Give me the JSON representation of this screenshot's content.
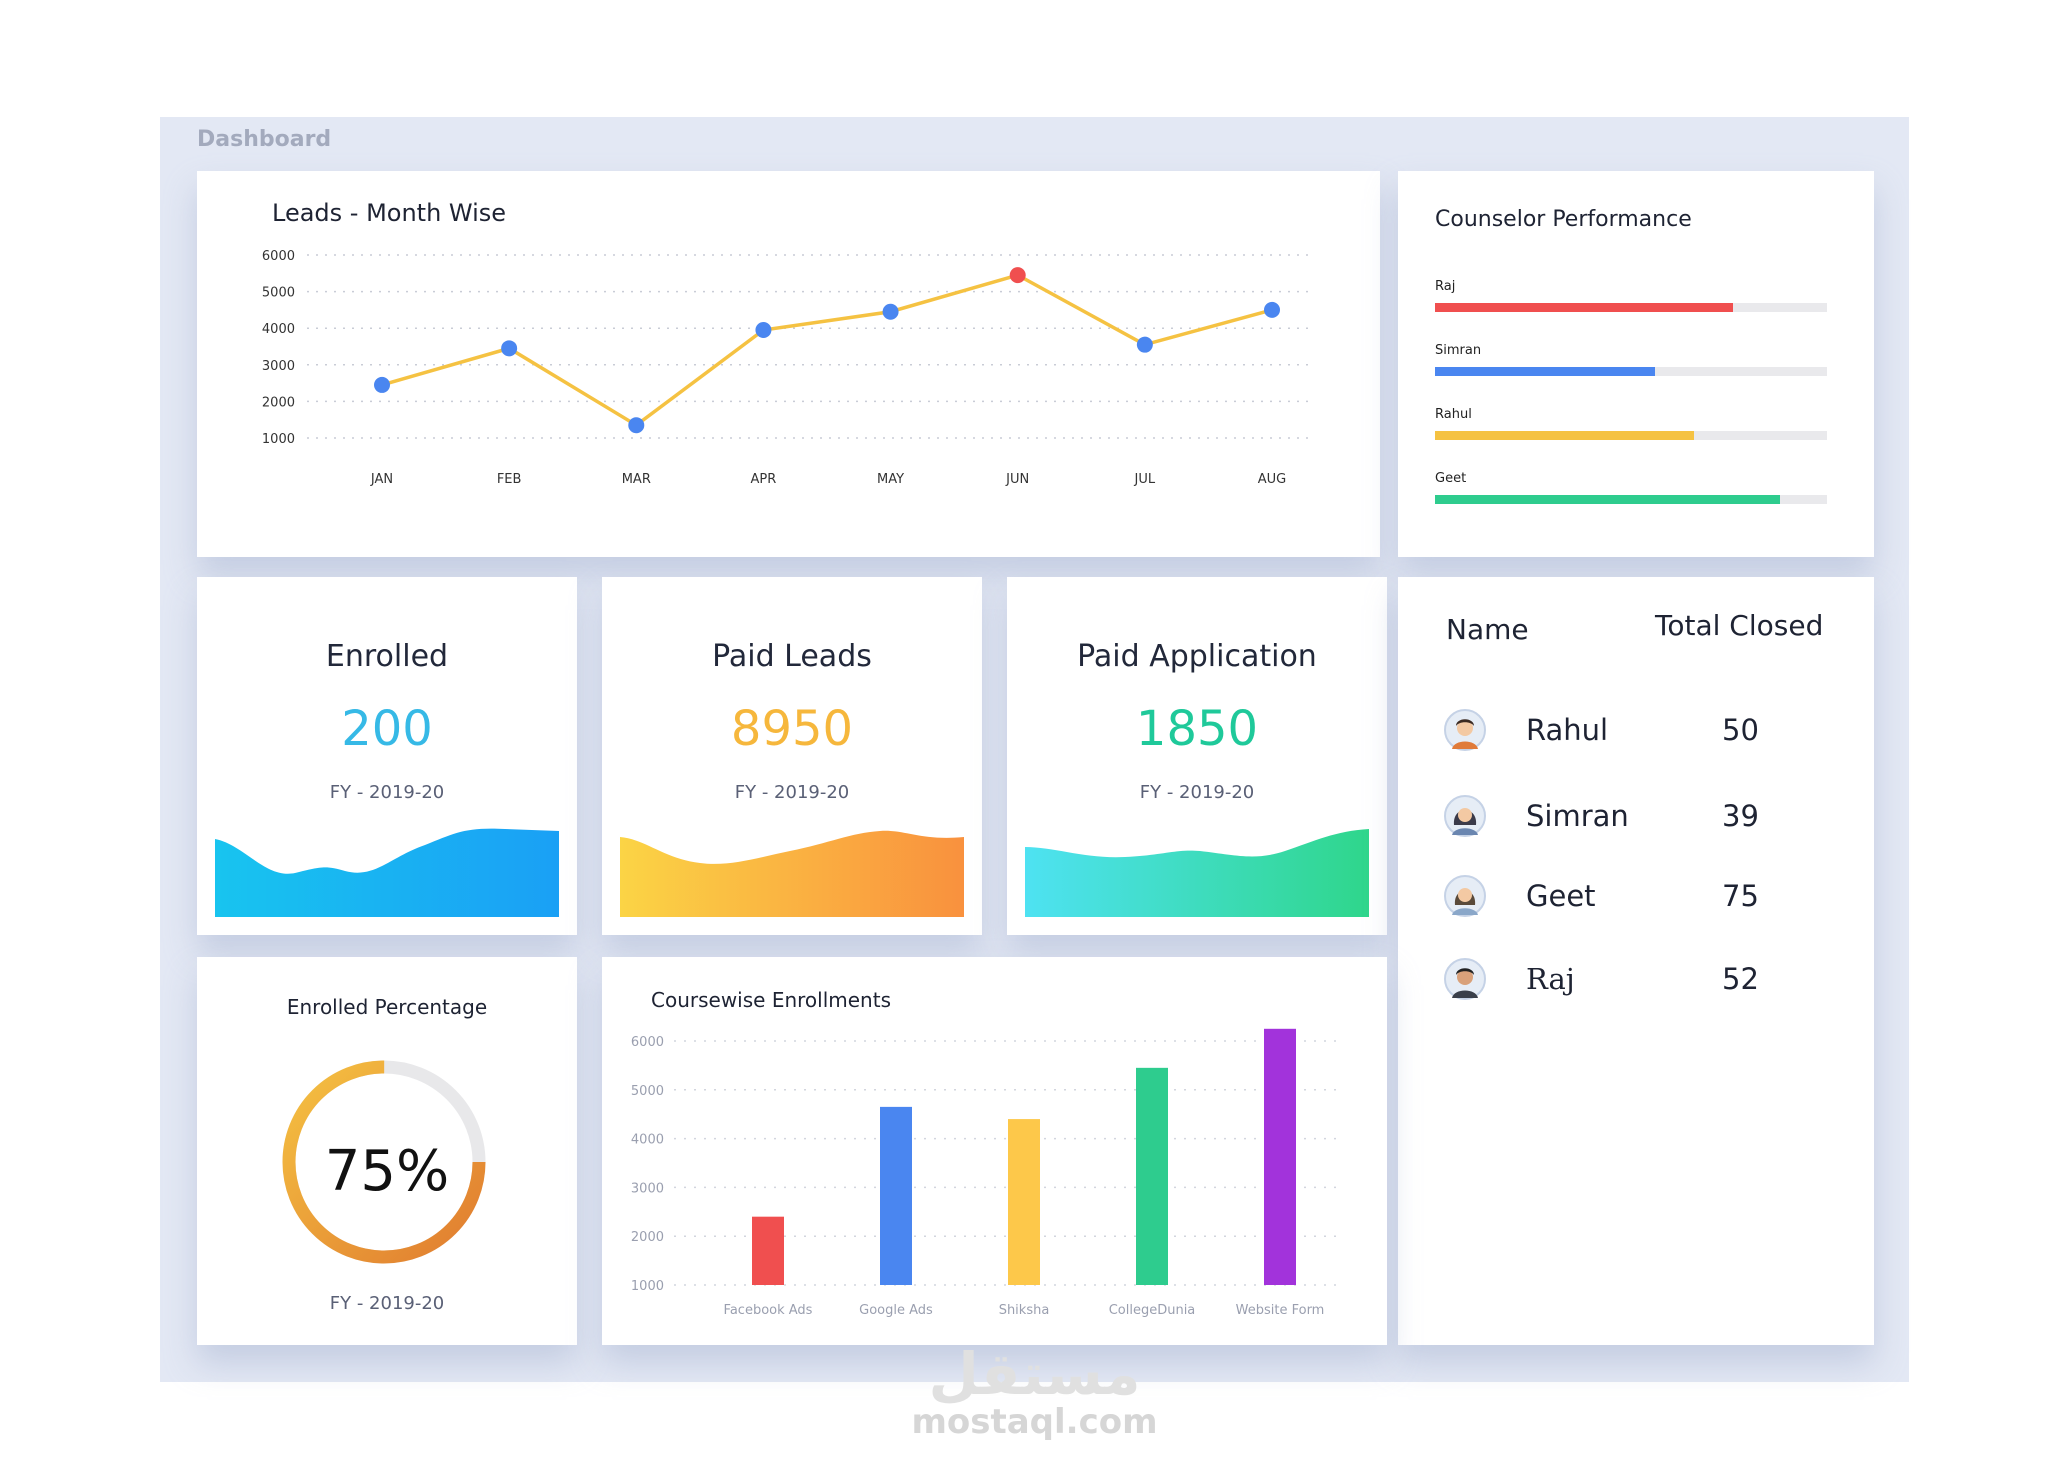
{
  "dashboard": {
    "title": "Dashboard"
  },
  "leads_chart": {
    "title": "Leads - Month Wise",
    "chart_data": {
      "type": "line",
      "title": "Leads - Month Wise",
      "x": [
        "JAN",
        "FEB",
        "MAR",
        "APR",
        "MAY",
        "JUN",
        "JUL",
        "AUG"
      ],
      "series": [
        {
          "values": [
            2450,
            3450,
            1350,
            3950,
            4450,
            5450,
            3550,
            4500
          ]
        }
      ],
      "yticks": [
        6000,
        5000,
        4000,
        3000,
        2000,
        1000
      ],
      "ylim": [
        1000,
        6000
      ],
      "grid": true,
      "line_color": "#f5c242",
      "point_color": "#4a86f0",
      "highlight_point": {
        "category": "JUN",
        "color": "#f04f4f"
      }
    }
  },
  "counselor_performance": {
    "title": "Counselor Performance",
    "items": [
      {
        "name": "Raj",
        "fraction": 0.76,
        "color": "#f04f4f"
      },
      {
        "name": "Simran",
        "fraction": 0.56,
        "color": "#4a86f0"
      },
      {
        "name": "Rahul",
        "fraction": 0.66,
        "color": "#f5c242"
      },
      {
        "name": "Geet",
        "fraction": 0.88,
        "color": "#2ecc8e"
      }
    ]
  },
  "stats": [
    {
      "title": "Enrolled",
      "value": "200",
      "subtitle": "FY - 2019-20",
      "value_color": "#36b9e6",
      "gradient": [
        "#18c4ef",
        "#1aa0f5"
      ]
    },
    {
      "title": "Paid Leads",
      "value": "8950",
      "subtitle": "FY - 2019-20",
      "value_color": "#f6b73c",
      "gradient": [
        "#fbd445",
        "#f9913e"
      ]
    },
    {
      "title": "Paid Application",
      "value": "1850",
      "subtitle": "FY - 2019-20",
      "value_color": "#1fc99a",
      "gradient": [
        "#4ee2f2",
        "#2fd68b"
      ]
    }
  ],
  "names_table": {
    "headers": {
      "name": "Name",
      "total": "Total Closed"
    },
    "rows": [
      {
        "name": "Rahul",
        "value": "50",
        "avatar": "male-avatar-icon"
      },
      {
        "name": "Simran",
        "value": "39",
        "avatar": "female-avatar-icon"
      },
      {
        "name": "Geet",
        "value": "75",
        "avatar": "female-avatar-icon"
      },
      {
        "name": "Raj",
        "value": "52",
        "avatar": "male-avatar-icon"
      }
    ]
  },
  "enrolled_percentage": {
    "title": "Enrolled Percentage",
    "value_label": "75%",
    "fraction": 0.75,
    "subtitle": "FY - 2019-20",
    "gradient": [
      "#f5c242",
      "#e07b2f"
    ]
  },
  "course_enrollments": {
    "title": "Coursewise Enrollments",
    "chart_data": {
      "type": "bar",
      "title": "Coursewise Enrollments",
      "categories": [
        "Facebook Ads",
        "Google Ads",
        "Shiksha",
        "CollegeDunia",
        "Website Form"
      ],
      "values": [
        2400,
        4650,
        4400,
        5450,
        6250
      ],
      "colors": [
        "#f04f4f",
        "#4a86f0",
        "#fdc84a",
        "#2ecc8e",
        "#a233db"
      ],
      "yticks": [
        6000,
        5000,
        4000,
        3000,
        2000,
        1000
      ],
      "ylim": [
        1000,
        6000
      ],
      "grid": true
    }
  },
  "watermark": {
    "latin": "mostaql.com",
    "arabic": "مستقل"
  }
}
